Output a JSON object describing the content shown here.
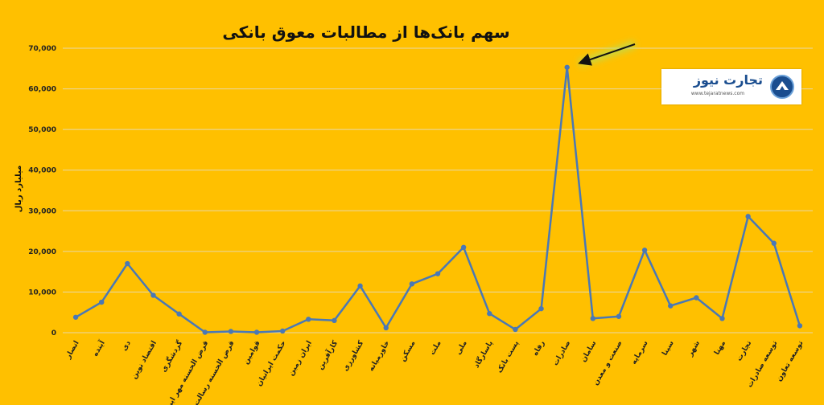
{
  "chart_data": {
    "type": "line",
    "title": "سهم بانک‌ها از مطالبات معوق بانکی",
    "ylabel": "میلیارد ریال",
    "ylim": [
      0,
      70000
    ],
    "yticks": [
      0,
      10000,
      20000,
      30000,
      40000,
      50000,
      60000,
      70000
    ],
    "ytick_labels": [
      "0",
      "10,000",
      "20,000",
      "30,000",
      "40,000",
      "50,000",
      "60,000",
      "70,000"
    ],
    "grid": true,
    "line_color": "#4a78b5",
    "categories": [
      "انصار",
      "آینده",
      "دی",
      "اقتصاد نوین",
      "گردشگری",
      "قرض الحسنه مهر ایران",
      "قرض الحسنه رسالت",
      "قوامین",
      "حکمت ایرانیان",
      "ایران زمین",
      "کارآفرین",
      "کشاورزی",
      "خاورمیانه",
      "مسکن",
      "ملت",
      "ملی",
      "پاسارگاد",
      "پست بانک",
      "رفاه",
      "صادرات",
      "سامان",
      "صنعت و معدن",
      "سرمایه",
      "سینا",
      "شهر",
      "مهنا",
      "تجارت",
      "توسعه صادرات",
      "توسعه تعاون"
    ],
    "values": [
      3800,
      7500,
      17000,
      9200,
      4600,
      100,
      300,
      100,
      400,
      3300,
      3000,
      11500,
      1200,
      12000,
      14500,
      21000,
      4700,
      800,
      5900,
      65300,
      3500,
      4000,
      20300,
      6600,
      8600,
      3500,
      28600,
      22000,
      1700
    ],
    "annotation": "arrow pointing to peak"
  },
  "logo": {
    "name": "تجارت نیوز",
    "url": "www.tejaratnews.com",
    "color": "#1a4d8f"
  }
}
